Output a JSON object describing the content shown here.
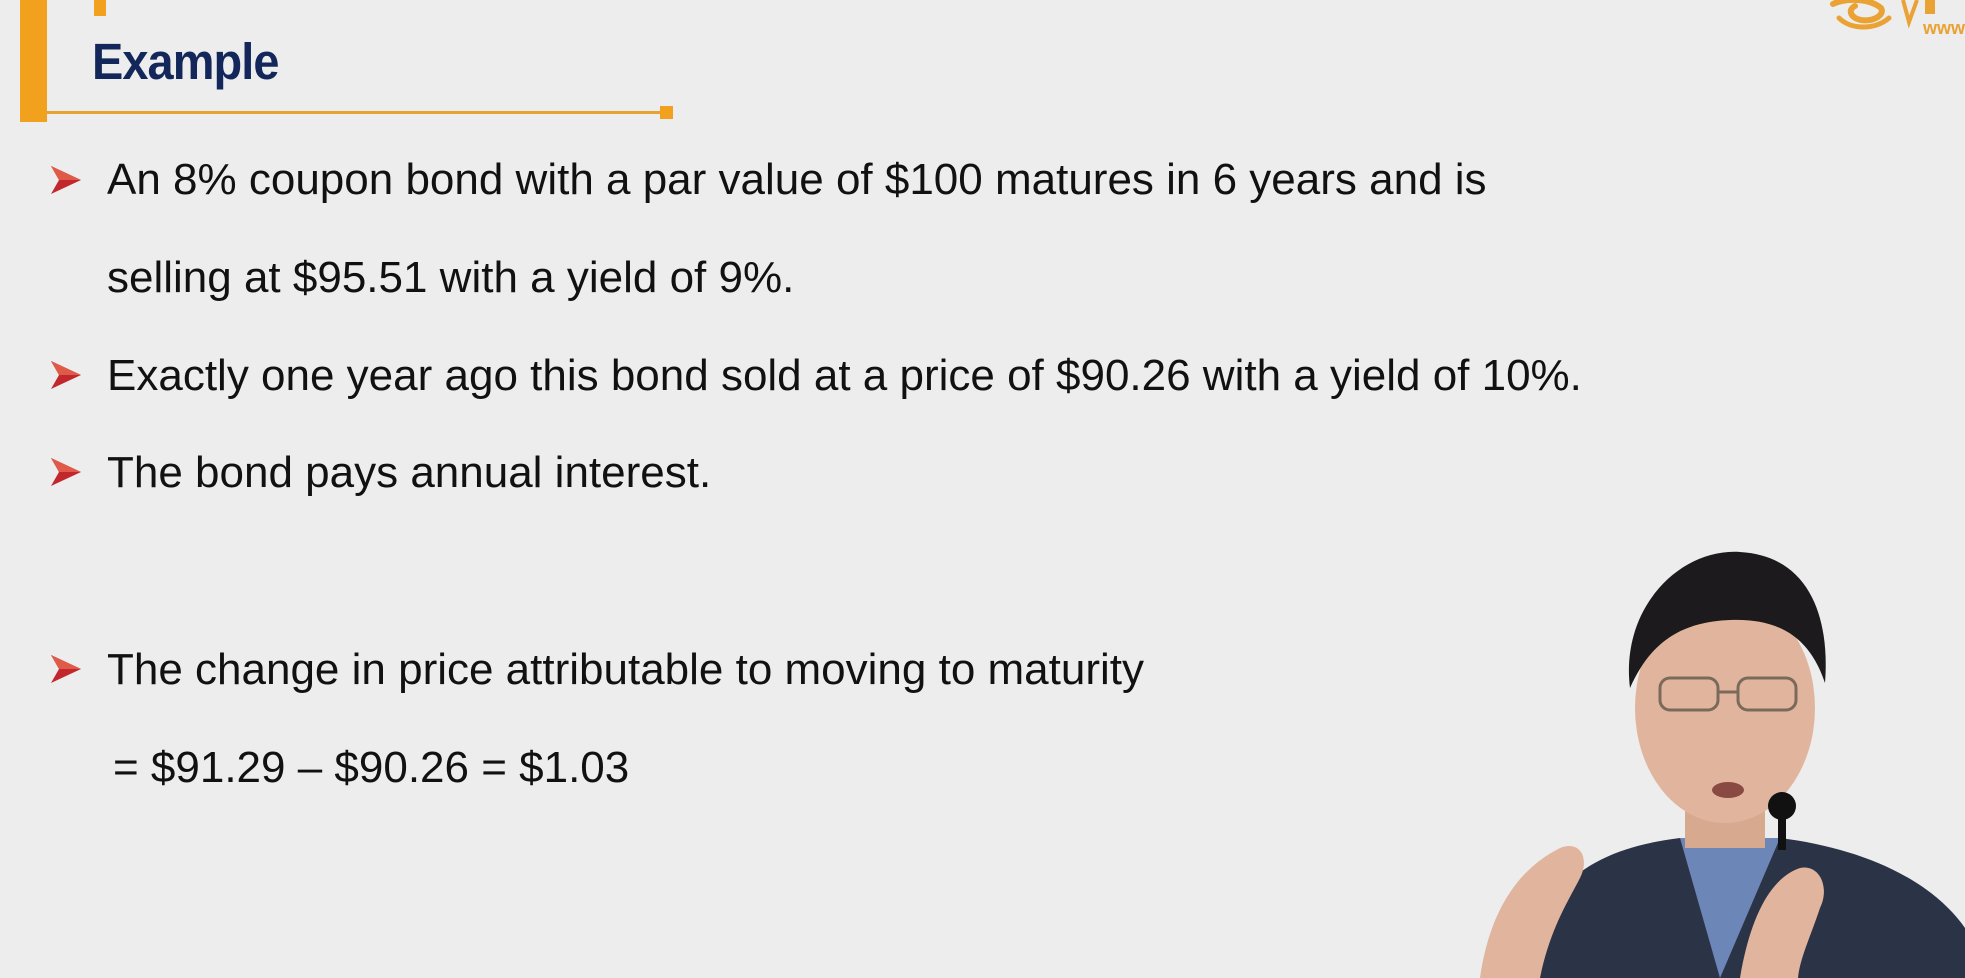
{
  "slide": {
    "title": "Example",
    "logo_text": "www",
    "bullets": [
      {
        "lines": [
          "An 8% coupon bond with a par value of $100 matures in 6 years and is",
          "selling at $95.51 with a yield of 9%."
        ]
      },
      {
        "lines": [
          "Exactly one year ago this bond sold at a price of $90.26 with a yield of 10%."
        ]
      },
      {
        "lines": [
          "The bond pays annual interest."
        ]
      },
      {
        "lines": [
          "The change in price attributable to moving to maturity"
        ]
      }
    ],
    "formula": "= $91.29 – $90.26 = $1.03"
  },
  "colors": {
    "background": "#ededed",
    "accent_orange": "#f2a11f",
    "title_navy": "#13275a",
    "bullet_red": "#c2272d",
    "text": "#111111"
  },
  "icons": {
    "bullet": "arrow-bullet-icon",
    "logo": "brand-logo-icon"
  }
}
